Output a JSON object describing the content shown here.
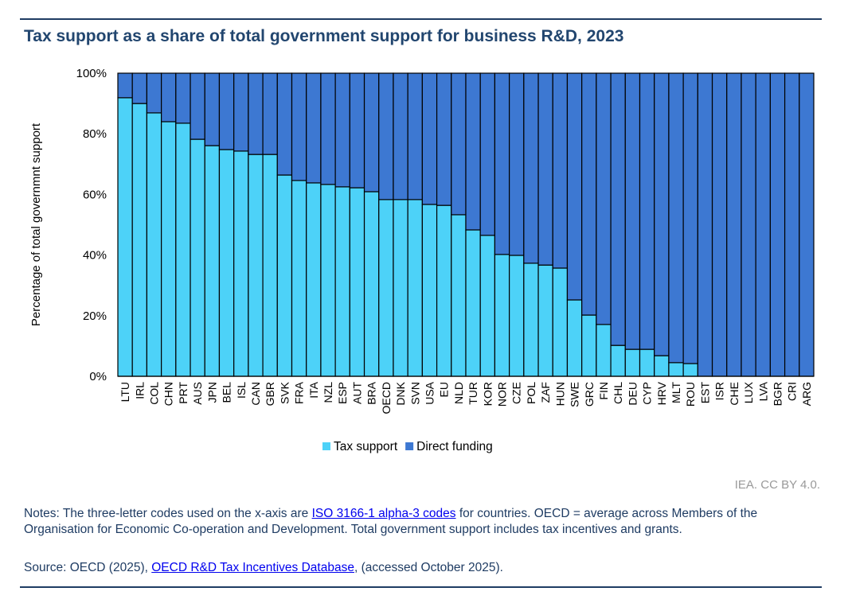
{
  "title": "Tax support as a share of total government support for business R&D, 2023",
  "credit": "IEA. CC BY 4.0.",
  "notes": {
    "prefix": "Notes: The three-letter codes used on the x-axis are ",
    "link": "ISO 3166-1 alpha-3 codes",
    "suffix": " for countries. OECD = average across Members of the Organisation for Economic Co-operation and Development. Total government support includes tax incentives and grants."
  },
  "source": {
    "prefix": "Source: OECD (2025), ",
    "link": "OECD R&D Tax Incentives Database",
    "suffix": ", (accessed October 2025)."
  },
  "chart_data": {
    "type": "bar",
    "stacked": true,
    "ylabel": "Percentage of total governmnt support",
    "ylim": [
      0,
      100
    ],
    "yticks": [
      "0%",
      "20%",
      "40%",
      "60%",
      "80%",
      "100%"
    ],
    "legend_position": "bottom",
    "categories": [
      "LTU",
      "IRL",
      "COL",
      "CHN",
      "PRT",
      "AUS",
      "JPN",
      "BEL",
      "ISL",
      "CAN",
      "GBR",
      "SVK",
      "FRA",
      "ITA",
      "NZL",
      "ESP",
      "AUT",
      "BRA",
      "OECD",
      "DNK",
      "SVN",
      "USA",
      "EU",
      "NLD",
      "TUR",
      "KOR",
      "NOR",
      "CZE",
      "POL",
      "ZAF",
      "HUN",
      "SWE",
      "GRC",
      "FIN",
      "CHL",
      "DEU",
      "CYP",
      "HRV",
      "MLT",
      "ROU",
      "EST",
      "ISR",
      "CHE",
      "LUX",
      "LVA",
      "BGR",
      "CRI",
      "ARG"
    ],
    "series": [
      {
        "name": "Tax support",
        "color": "#4dd2f8",
        "values": [
          91.9,
          90.0,
          86.9,
          84.0,
          83.5,
          78.2,
          76.1,
          74.8,
          74.3,
          73.2,
          73.2,
          66.4,
          64.6,
          63.8,
          63.3,
          62.5,
          62.2,
          60.9,
          58.3,
          58.3,
          58.3,
          56.7,
          56.4,
          53.3,
          48.3,
          46.5,
          40.2,
          39.9,
          37.3,
          36.7,
          35.7,
          25.2,
          20.2,
          17.1,
          10.2,
          8.9,
          8.9,
          6.8,
          4.5,
          4.2,
          0,
          0,
          0,
          0,
          0,
          0,
          0,
          0
        ]
      },
      {
        "name": "Direct funding",
        "color": "#3d78d2",
        "values": [
          8.1,
          10.0,
          13.1,
          16.0,
          16.5,
          21.8,
          23.9,
          25.2,
          25.7,
          26.8,
          26.8,
          33.6,
          35.4,
          36.2,
          36.7,
          37.5,
          37.8,
          39.1,
          41.7,
          41.7,
          41.7,
          43.3,
          43.6,
          46.7,
          51.7,
          53.5,
          59.8,
          60.1,
          62.7,
          63.3,
          64.3,
          74.8,
          79.8,
          82.9,
          89.8,
          91.1,
          91.1,
          93.2,
          95.5,
          95.8,
          100,
          100,
          100,
          100,
          100,
          100,
          100,
          100
        ]
      }
    ]
  }
}
